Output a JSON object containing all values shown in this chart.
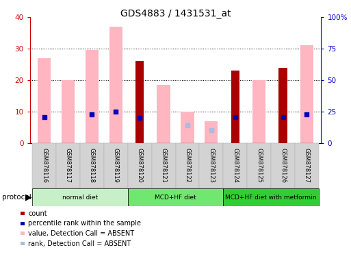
{
  "title": "GDS4883 / 1431531_at",
  "samples": [
    "GSM878116",
    "GSM878117",
    "GSM878118",
    "GSM878119",
    "GSM878120",
    "GSM878121",
    "GSM878122",
    "GSM878123",
    "GSM878124",
    "GSM878125",
    "GSM878126",
    "GSM878127"
  ],
  "count": [
    null,
    null,
    null,
    null,
    26,
    null,
    null,
    null,
    23,
    null,
    24,
    null
  ],
  "percentile_rank": [
    21,
    null,
    23,
    25,
    20,
    null,
    null,
    null,
    21,
    null,
    21,
    23
  ],
  "value_absent": [
    27,
    20,
    29.5,
    37,
    null,
    18.5,
    10,
    7,
    null,
    20,
    null,
    31
  ],
  "rank_absent": [
    null,
    null,
    null,
    null,
    null,
    null,
    14,
    10.5,
    null,
    null,
    null,
    null
  ],
  "protocol_colors": [
    "#C8F0C8",
    "#70E870",
    "#32CD32"
  ],
  "protocol_labels": [
    "normal diet",
    "MCD+HF diet",
    "MCD+HF diet with metformin"
  ],
  "protocol_ranges": [
    [
      0,
      4
    ],
    [
      4,
      8
    ],
    [
      8,
      12
    ]
  ],
  "ylim": [
    0,
    40
  ],
  "y2lim": [
    0,
    100
  ],
  "yticks": [
    0,
    10,
    20,
    30,
    40
  ],
  "y2ticks": [
    0,
    25,
    50,
    75,
    100
  ],
  "y2ticklabels": [
    "0",
    "25",
    "50",
    "75",
    "100%"
  ],
  "count_color": "#AA0000",
  "percentile_color": "#0000BB",
  "value_absent_color": "#FFB6C1",
  "rank_absent_color": "#AABBDD",
  "left_axis_color": "#CC0000",
  "right_axis_color": "#0000CC"
}
